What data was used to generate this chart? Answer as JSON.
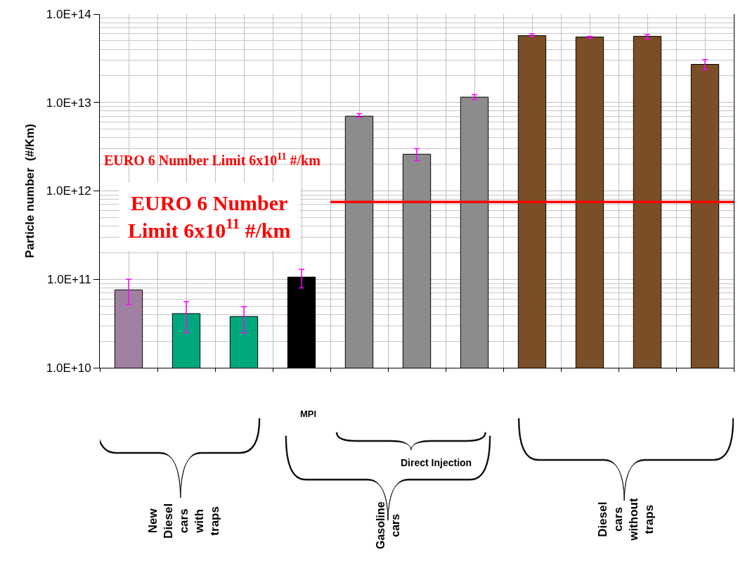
{
  "chart_data": {
    "type": "bar",
    "ylabel": "Particle number  (#/Km)",
    "categories": [
      null,
      null,
      null,
      null,
      null,
      null,
      null,
      null,
      null,
      null,
      null
    ],
    "values": [
      76000000000.0,
      41000000000.0,
      38000000000.0,
      106000000000.0,
      7000000000000.0,
      2600000000000.0,
      11500000000000.0,
      57000000000000.0,
      55000000000000.0,
      56000000000000.0,
      27000000000000.0
    ],
    "colors": [
      "#a080a0",
      "#00a87e",
      "#00a87e",
      "#000000",
      "#8c8c8c",
      "#8c8c8c",
      "#8c8c8c",
      "#7a4e26",
      "#7a4e26",
      "#7a4e26",
      "#7a4e26"
    ],
    "errors": [
      [
        52000000000.0,
        100000000000.0
      ],
      [
        25000000000.0,
        56000000000.0
      ],
      [
        25000000000.0,
        49000000000.0
      ],
      [
        80000000000.0,
        130000000000.0
      ],
      [
        6800000000000.0,
        7500000000000.0
      ],
      [
        2200000000000.0,
        3000000000000.0
      ],
      [
        10800000000000.0,
        12300000000000.0
      ],
      [
        56000000000000.0,
        60000000000000.0
      ],
      [
        53500000000000.0,
        56000000000000.0
      ],
      [
        52500000000000.0,
        58500000000000.0
      ],
      [
        23500000000000.0,
        30500000000000.0
      ]
    ],
    "ylim": [
      10000000000.0,
      100000000000000.0
    ],
    "yticks": [
      {
        "value": 10000000000.0,
        "label": "1.0E+10"
      },
      {
        "value": 100000000000.0,
        "label": "1.0E+11"
      },
      {
        "value": 1000000000000.0,
        "label": "1.0E+12"
      },
      {
        "value": 10000000000000.0,
        "label": "1.0E+13"
      },
      {
        "value": 100000000000000.0,
        "label": "1.0E+14"
      }
    ],
    "log": "y",
    "grid": true,
    "tick_labels": "y",
    "ref_lines": [
      {
        "axis": "y",
        "value": 750000000000.0,
        "label": "EURO 6 Number Limit 6x10$^{11}$ #/km",
        "color": "#ff0000"
      }
    ],
    "annotations": [
      "EURO 6 Number\nLimit 6x10$^{11}$ #/km",
      "MPI",
      "Direct Injection",
      "New\nDiesel\ncars\nwith\ntraps",
      "Gasoline\ncars",
      "Diesel\ncars\nwithout\ntraps"
    ]
  }
}
